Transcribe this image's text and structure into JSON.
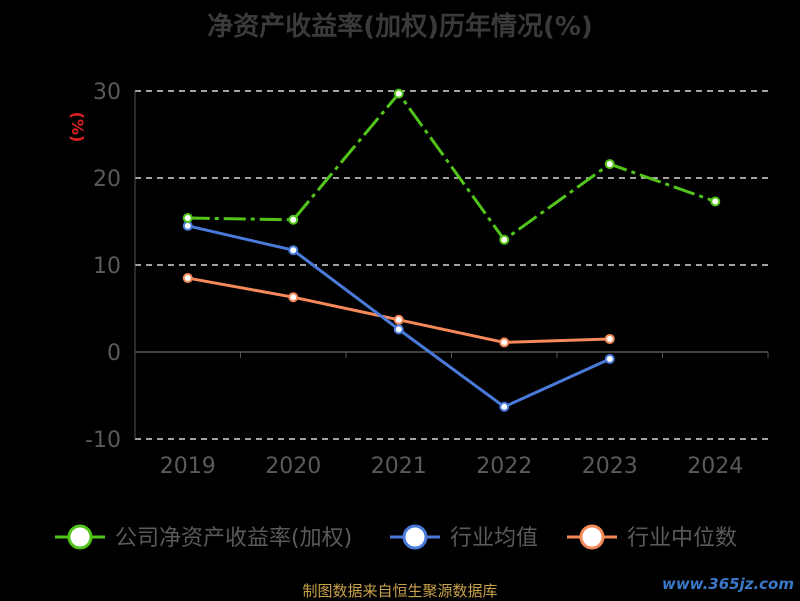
{
  "chart_data": {
    "type": "line",
    "title": "净资产收益率(加权)历年情况(%)",
    "ylabel": "(%)",
    "categories": [
      "2019",
      "2020",
      "2021",
      "2022",
      "2023",
      "2024"
    ],
    "ylim": [
      -10,
      30
    ],
    "yticks": [
      "-10",
      "0",
      "10",
      "20",
      "30"
    ],
    "grid": true,
    "legend_position": "bottom",
    "series": [
      {
        "name": "公司净资产收益率(加权)",
        "color": "#52c41a",
        "dashed": true,
        "values": [
          15.4,
          15.2,
          29.7,
          12.9,
          21.6,
          17.3
        ]
      },
      {
        "name": "行业均值",
        "color": "#4a7bdb",
        "dashed": false,
        "values": [
          14.5,
          11.7,
          2.6,
          -6.3,
          -0.8,
          null
        ]
      },
      {
        "name": "行业中位数",
        "color": "#f5895a",
        "dashed": false,
        "values": [
          8.5,
          6.3,
          3.7,
          1.1,
          1.5,
          null
        ]
      }
    ]
  },
  "source": "制图数据来自恒生聚源数据库",
  "watermark": "www.365jz.com"
}
